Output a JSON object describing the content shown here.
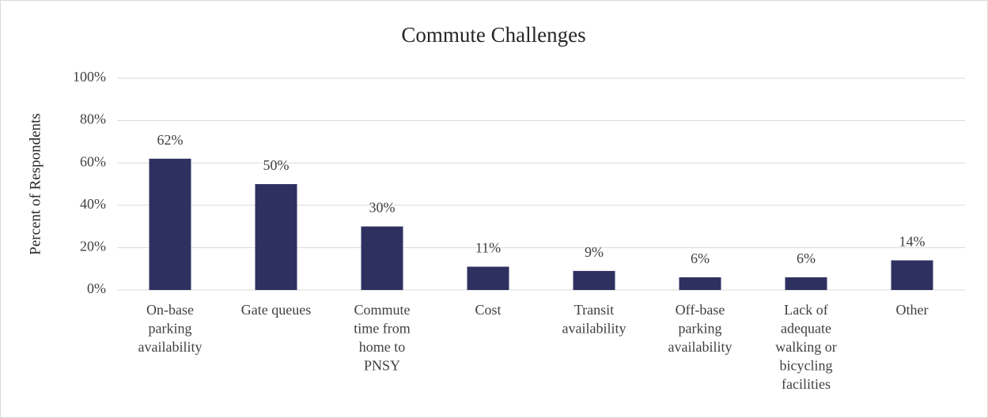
{
  "chart_data": {
    "type": "bar",
    "title": "Commute Challenges",
    "y_label": "Percent of Respondents",
    "categories": [
      "On-base parking availability",
      "Gate queues",
      "Commute time from home to PNSY",
      "Cost",
      "Transit availability",
      "Off-base parking availability",
      "Lack of adequate walking or bicycling facilities",
      "Other"
    ],
    "values": [
      62,
      50,
      30,
      11,
      9,
      6,
      6,
      14
    ],
    "value_labels": [
      "62%",
      "50%",
      "30%",
      "11%",
      "9%",
      "6%",
      "6%",
      "14%"
    ],
    "color": "#2e3160",
    "ylim": [
      0,
      100
    ],
    "yticks": [
      {
        "value": 0,
        "label": "0%"
      },
      {
        "value": 20,
        "label": "20%"
      },
      {
        "value": 40,
        "label": "40%"
      },
      {
        "value": 60,
        "label": "60%"
      },
      {
        "value": 80,
        "label": "80%"
      },
      {
        "value": 100,
        "label": "100%"
      }
    ],
    "grid": true
  }
}
